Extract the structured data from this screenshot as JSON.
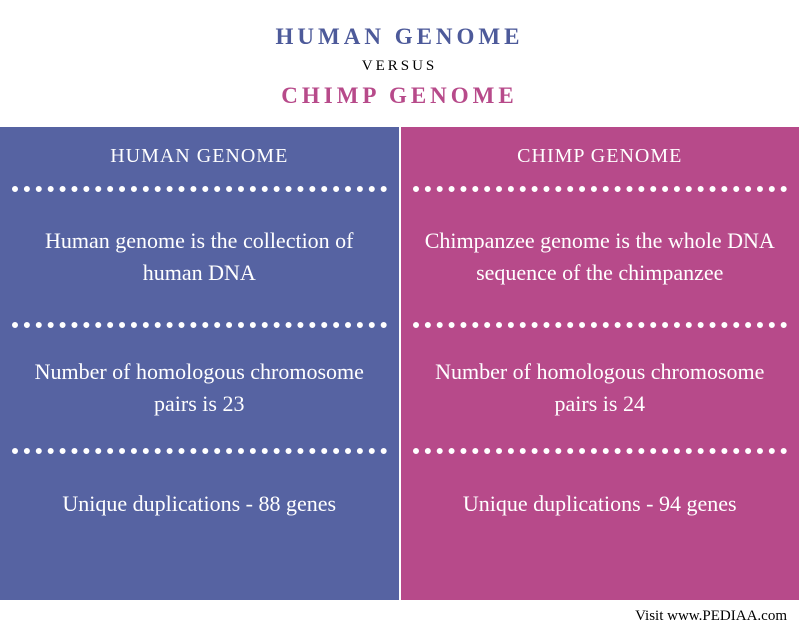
{
  "header": {
    "title1": "HUMAN GENOME",
    "versus": "VERSUS",
    "title2": "CHIMP GENOME",
    "title1_color": "#4d5a9a",
    "title2_color": "#b74a8a"
  },
  "columns": {
    "left": {
      "header": "HUMAN GENOME",
      "background_color": "#5663a2",
      "cells": [
        "Human genome is the collection of human DNA",
        "Number of homologous chromosome pairs is 23",
        "Unique duplications - 88 genes"
      ]
    },
    "right": {
      "header": "CHIMP GENOME",
      "background_color": "#b74a8a",
      "cells": [
        "Chimpanzee genome is the whole DNA sequence of the chimpanzee",
        "Number of homologous chromosome pairs is 24",
        "Unique duplications - 94 genes"
      ]
    }
  },
  "footer": {
    "text": "Visit www.PEDIAA.com"
  },
  "styling": {
    "divider_color": "#ffffff",
    "divider_style": "dotted",
    "divider_width": 6,
    "body_background": "#ffffff",
    "text_color": "#ffffff",
    "header_font_size": 23,
    "cell_font_size": 22,
    "col_header_font_size": 20,
    "footer_font_size": 15,
    "font_family": "Georgia, serif"
  }
}
